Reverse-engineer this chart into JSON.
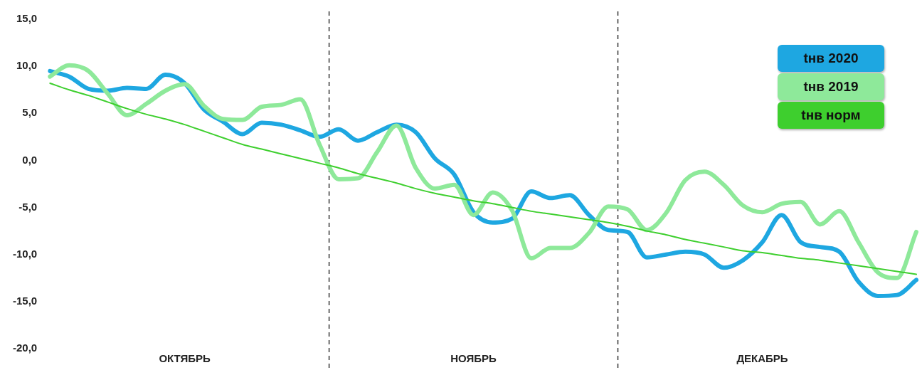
{
  "chart_data": {
    "type": "line",
    "categories": [
      null,
      null,
      null,
      null,
      null,
      null,
      null,
      "ОКТЯБРЬ",
      null,
      null,
      null,
      null,
      null,
      null,
      null,
      null,
      null,
      null,
      null,
      null,
      null,
      null,
      "НОЯБРЬ",
      null,
      null,
      null,
      null,
      null,
      null,
      null,
      null,
      null,
      null,
      null,
      null,
      null,
      null,
      "ДЕКАБРЬ",
      null,
      null,
      null,
      null,
      null,
      null,
      null,
      null
    ],
    "ylim": [
      -20,
      15
    ],
    "yticks": [
      {
        "value": -20,
        "label": "-20,0"
      },
      {
        "value": -15,
        "label": "-15,0"
      },
      {
        "value": -10,
        "label": "-10,0"
      },
      {
        "value": -5,
        "label": "-5,0"
      },
      {
        "value": 0,
        "label": "0,0"
      },
      {
        "value": 5,
        "label": "5,0"
      },
      {
        "value": 10,
        "label": "10,0"
      },
      {
        "value": 15,
        "label": "15,0"
      }
    ],
    "legend": "top right",
    "series": [
      {
        "name": "tнв 2020",
        "color": "#1ea7e1",
        "values": [
          9.5,
          8.9,
          7.6,
          7.4,
          7.7,
          7.6,
          9.1,
          8.2,
          5.4,
          4.1,
          2.8,
          4.0,
          3.8,
          3.2,
          2.5,
          3.3,
          2.1,
          3.0,
          3.8,
          3.0,
          0.2,
          -1.5,
          -5.5,
          -6.6,
          -6.2,
          -3.3,
          -4.0,
          -3.7,
          -5.8,
          -7.4,
          -7.6,
          -10.3,
          -10.0,
          -9.7,
          -10.0,
          -11.4,
          -10.6,
          -8.7,
          -5.8,
          -8.7,
          -9.2,
          -9.7,
          -12.9,
          -14.4,
          -14.3,
          -12.7
        ]
      },
      {
        "name": "tнв 2019",
        "color": "#8ee99a",
        "values": [
          8.9,
          10.1,
          9.5,
          7.1,
          4.8,
          6.0,
          7.4,
          8.1,
          5.8,
          4.4,
          4.3,
          5.7,
          5.9,
          6.5,
          1.7,
          -2.0,
          -1.9,
          0.9,
          3.7,
          -0.8,
          -3.0,
          -2.6,
          -5.8,
          -3.4,
          -5.3,
          -10.4,
          -9.3,
          -9.3,
          -7.7,
          -4.9,
          -5.2,
          -7.4,
          -5.6,
          -2.1,
          -1.2,
          -2.6,
          -4.8,
          -5.5,
          -4.6,
          -4.4,
          -6.8,
          -5.4,
          -8.7,
          -11.9,
          -12.5,
          -7.6
        ]
      },
      {
        "name": "tнв норм",
        "color": "#3ecf2e",
        "values": [
          8.2,
          7.5,
          6.9,
          6.2,
          5.5,
          4.9,
          4.4,
          3.8,
          3.1,
          2.4,
          1.7,
          1.2,
          0.7,
          0.2,
          -0.3,
          -0.8,
          -1.4,
          -1.9,
          -2.4,
          -3.0,
          -3.5,
          -3.9,
          -4.3,
          -4.6,
          -5.0,
          -5.4,
          -5.7,
          -6.0,
          -6.3,
          -6.6,
          -7.0,
          -7.5,
          -7.9,
          -8.4,
          -8.8,
          -9.2,
          -9.6,
          -9.8,
          -10.1,
          -10.4,
          -10.6,
          -10.9,
          -11.2,
          -11.5,
          -11.8,
          -12.1
        ]
      }
    ]
  }
}
